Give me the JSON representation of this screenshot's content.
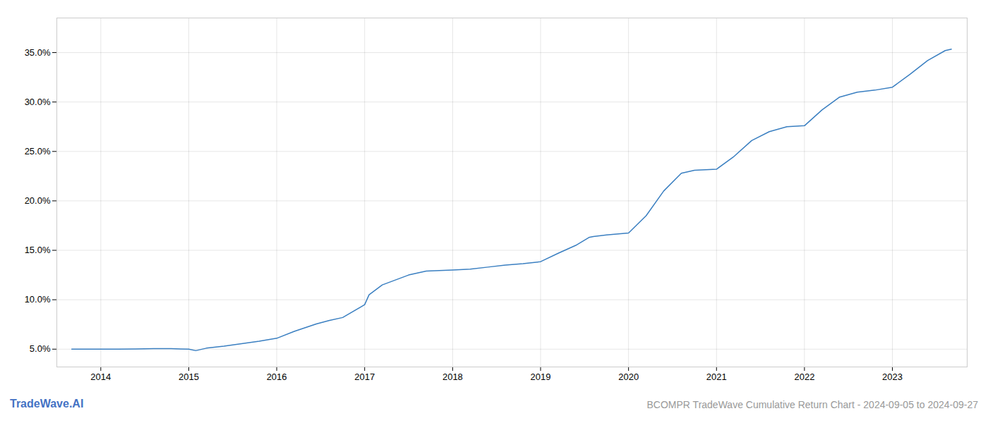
{
  "chart_data": {
    "type": "line",
    "title": "BCOMPR TradeWave Cumulative Return Chart - 2024-09-05 to 2024-09-27",
    "annotations": [
      {
        "text": "TradeWave.AI",
        "color": "#4472c4"
      }
    ],
    "x": [
      2013.67,
      2014.0,
      2014.2,
      2014.4,
      2014.6,
      2014.8,
      2015.0,
      2015.08,
      2015.2,
      2015.4,
      2015.6,
      2015.8,
      2016.0,
      2016.2,
      2016.45,
      2016.6,
      2016.75,
      2017.0,
      2017.05,
      2017.2,
      2017.5,
      2017.7,
      2018.0,
      2018.2,
      2018.4,
      2018.6,
      2018.8,
      2019.0,
      2019.2,
      2019.4,
      2019.55,
      2019.6,
      2019.75,
      2020.0,
      2020.2,
      2020.4,
      2020.6,
      2020.75,
      2021.0,
      2021.2,
      2021.4,
      2021.6,
      2021.8,
      2022.0,
      2022.2,
      2022.4,
      2022.6,
      2022.8,
      2023.0,
      2023.2,
      2023.4,
      2023.6,
      2023.67
    ],
    "values": [
      5.0,
      5.0,
      5.0,
      5.02,
      5.05,
      5.05,
      5.0,
      4.85,
      5.1,
      5.3,
      5.55,
      5.8,
      6.1,
      6.8,
      7.55,
      7.9,
      8.2,
      9.5,
      10.5,
      11.5,
      12.5,
      12.9,
      13.0,
      13.1,
      13.3,
      13.5,
      13.65,
      13.85,
      14.7,
      15.5,
      16.3,
      16.4,
      16.55,
      16.75,
      18.5,
      21.0,
      22.8,
      23.1,
      23.2,
      24.5,
      26.1,
      27.0,
      27.5,
      27.6,
      29.2,
      30.5,
      31.0,
      31.2,
      31.5,
      32.8,
      34.2,
      35.2,
      35.35
    ],
    "color": "#3a7fc1",
    "xlim": [
      2013.5,
      2023.85
    ],
    "xticks": [
      2014,
      2015,
      2016,
      2017,
      2018,
      2019,
      2020,
      2021,
      2022,
      2023
    ],
    "ylim": [
      3.2,
      38.5
    ],
    "yticks": [
      {
        "value": 5.0,
        "label": "5.0%"
      },
      {
        "value": 10.0,
        "label": "10.0%"
      },
      {
        "value": 15.0,
        "label": "15.0%"
      },
      {
        "value": 20.0,
        "label": "20.0%"
      },
      {
        "value": 25.0,
        "label": "25.0%"
      },
      {
        "value": 30.0,
        "label": "30.0%"
      },
      {
        "value": 35.0,
        "label": "35.0%"
      }
    ],
    "grid": true
  }
}
